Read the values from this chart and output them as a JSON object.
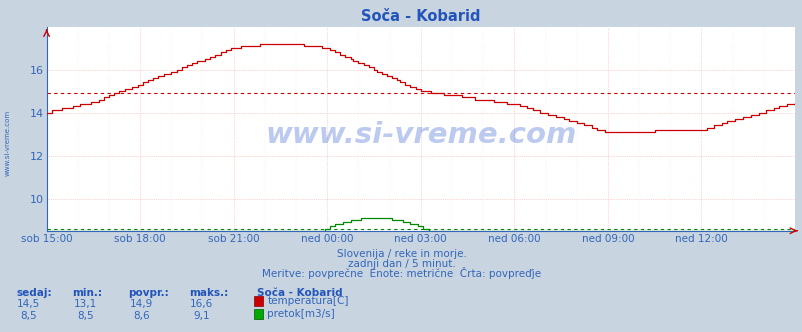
{
  "title": "Soča - Kobarid",
  "fig_bg_color": "#c8d4e0",
  "plot_bg_color": "#ffffff",
  "grid_color": "#ffaaaa",
  "axis_color": "#3366bb",
  "title_color": "#2255bb",
  "text_color": "#3366bb",
  "temp_color": "#cc0000",
  "flow_color": "#008800",
  "temp_avg_color": "#cc0000",
  "flow_avg_color": "#008800",
  "ylim_temp": [
    8.5,
    18.0
  ],
  "y_ticks": [
    10,
    12,
    14,
    16
  ],
  "x_tick_labels": [
    "sob 15:00",
    "sob 18:00",
    "sob 21:00",
    "ned 00:00",
    "ned 03:00",
    "ned 06:00",
    "ned 09:00",
    "ned 12:00"
  ],
  "n_points": 289,
  "temp_avg": 14.9,
  "flow_avg": 8.6,
  "flow_min": 8.5,
  "flow_max": 9.1,
  "flow_ylim": [
    8.0,
    18.5
  ],
  "subtitle1": "Slovenija / reke in morje.",
  "subtitle2": "zadnji dan / 5 minut.",
  "subtitle3": "Meritve: povprečne  Enote: metrične  Črta: povpreďje",
  "legend_station": "Soča - Kobarid",
  "legend_temp": "temperatura[C]",
  "legend_flow": "pretok[m3/s]",
  "stats_headers": [
    "sedaj:",
    "min.:",
    "povpr.:",
    "maks.:"
  ],
  "stats_temp": [
    "14,5",
    "13,1",
    "14,9",
    "16,6"
  ],
  "stats_flow": [
    "8,5",
    "8,5",
    "8,6",
    "9,1"
  ],
  "watermark": "www.si-vreme.com",
  "watermark_color": "#1144cc",
  "sidebar_text": "www.si-vreme.com"
}
